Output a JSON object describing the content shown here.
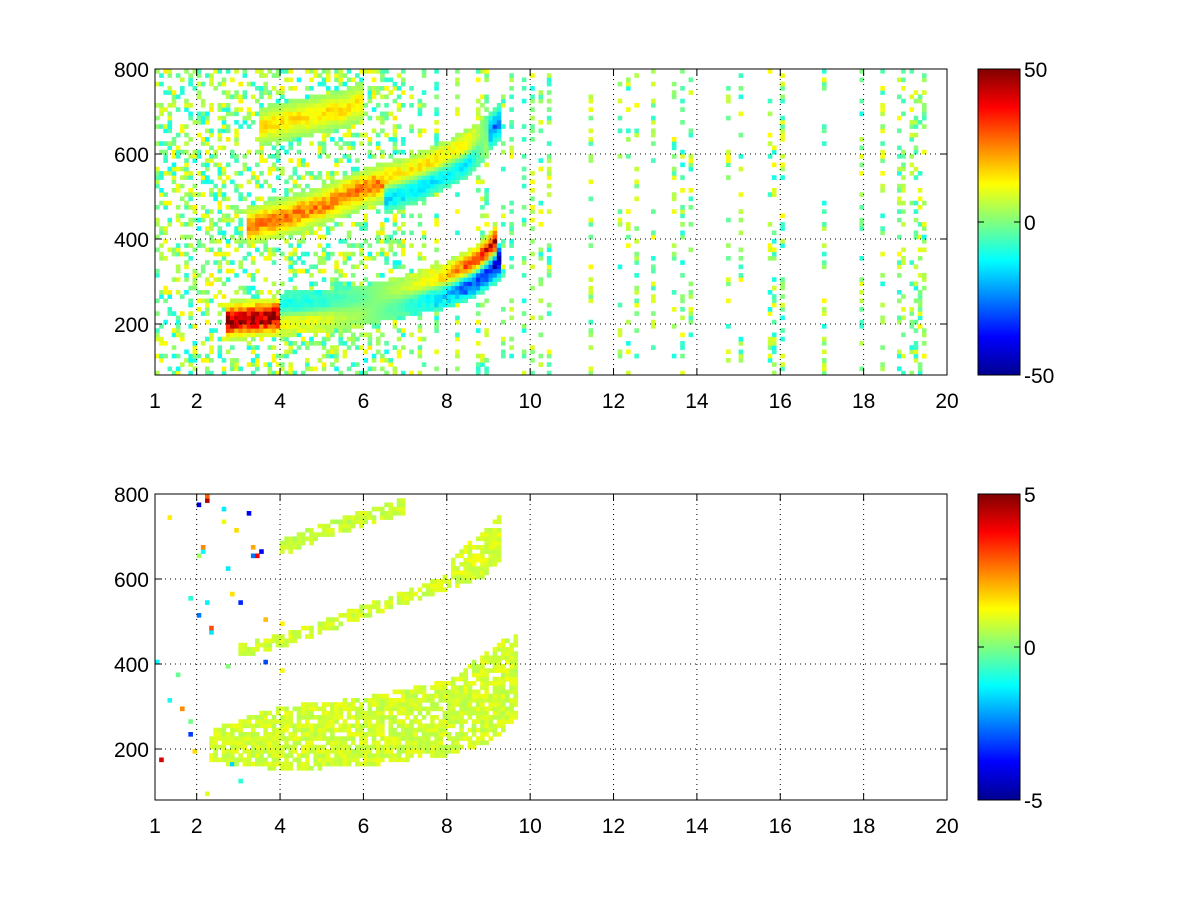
{
  "chart_data": [
    {
      "type": "heatmap",
      "title": "",
      "xlabel": "",
      "ylabel": "",
      "xlim": [
        1,
        20
      ],
      "ylim": [
        80,
        800
      ],
      "xtick_labels": [
        "1",
        "2",
        "4",
        "6",
        "8",
        "10",
        "12",
        "14",
        "16",
        "18",
        "20"
      ],
      "xtick_values": [
        1,
        2,
        4,
        6,
        8,
        10,
        12,
        14,
        16,
        18,
        20
      ],
      "ytick_labels": [
        "200",
        "400",
        "600",
        "800"
      ],
      "ytick_values": [
        200,
        400,
        600,
        800
      ],
      "grid": true,
      "colormap": "jet",
      "colorbar": {
        "min": -50,
        "max": 50,
        "tick_labels": [
          "50",
          "0",
          "-50"
        ],
        "tick_values": [
          50,
          0,
          -50
        ]
      },
      "ridges": [
        {
          "x": [
            2.7,
            4,
            5,
            6,
            7,
            8,
            8.8,
            9.2
          ],
          "y": [
            208,
            218,
            228,
            242,
            268,
            300,
            345,
            395
          ],
          "sign": "positive",
          "strength": 45
        },
        {
          "x": [
            4,
            5,
            6,
            7,
            8,
            8.6,
            9.3
          ],
          "y": [
            228,
            236,
            244,
            262,
            285,
            305,
            350
          ],
          "sign": "negative",
          "strength": -45
        },
        {
          "x": [
            3.2,
            4,
            5,
            6,
            7,
            8,
            9
          ],
          "y": [
            430,
            448,
            478,
            520,
            545,
            585,
            640
          ],
          "sign": "positive",
          "strength": 25
        },
        {
          "x": [
            6.5,
            7.5,
            8.5,
            9.3
          ],
          "y": [
            505,
            540,
            590,
            680
          ],
          "sign": "negative",
          "strength": -25
        },
        {
          "x": [
            3.5,
            4.5,
            5.5,
            6
          ],
          "y": [
            665,
            685,
            705,
            725
          ],
          "sign": "positive",
          "strength": 15
        }
      ]
    },
    {
      "type": "heatmap",
      "title": "",
      "xlabel": "",
      "ylabel": "",
      "xlim": [
        1,
        20
      ],
      "ylim": [
        80,
        800
      ],
      "xtick_labels": [
        "1",
        "2",
        "4",
        "6",
        "8",
        "10",
        "12",
        "14",
        "16",
        "18",
        "20"
      ],
      "xtick_values": [
        1,
        2,
        4,
        6,
        8,
        10,
        12,
        14,
        16,
        18,
        20
      ],
      "ytick_labels": [
        "200",
        "400",
        "600",
        "800"
      ],
      "ytick_values": [
        200,
        400,
        600,
        800
      ],
      "grid": true,
      "colormap": "jet",
      "colorbar": {
        "min": -5,
        "max": 5,
        "tick_labels": [
          "5",
          "0",
          "-5"
        ],
        "tick_values": [
          5,
          0,
          -5
        ]
      },
      "regions": [
        {
          "x": [
            2.3,
            4,
            6,
            8,
            9,
            9.7
          ],
          "y_low": [
            170,
            150,
            160,
            185,
            215,
            270
          ],
          "y_high": [
            245,
            300,
            320,
            360,
            430,
            480
          ],
          "value": 0.8
        },
        {
          "x": [
            3,
            4,
            5,
            6,
            7,
            8,
            9
          ],
          "y_low": [
            415,
            440,
            470,
            510,
            540,
            575,
            610
          ],
          "y_high": [
            445,
            470,
            500,
            540,
            570,
            610,
            650
          ],
          "value": 0.8
        },
        {
          "x": [
            4,
            5,
            6,
            7
          ],
          "y_low": [
            655,
            695,
            725,
            755
          ],
          "y_high": [
            690,
            730,
            760,
            790
          ],
          "value": 0.7
        },
        {
          "x": [
            8.1,
            9.3
          ],
          "y_low": [
            600,
            640
          ],
          "y_high": [
            650,
            750
          ],
          "value": 0.9
        }
      ]
    }
  ]
}
